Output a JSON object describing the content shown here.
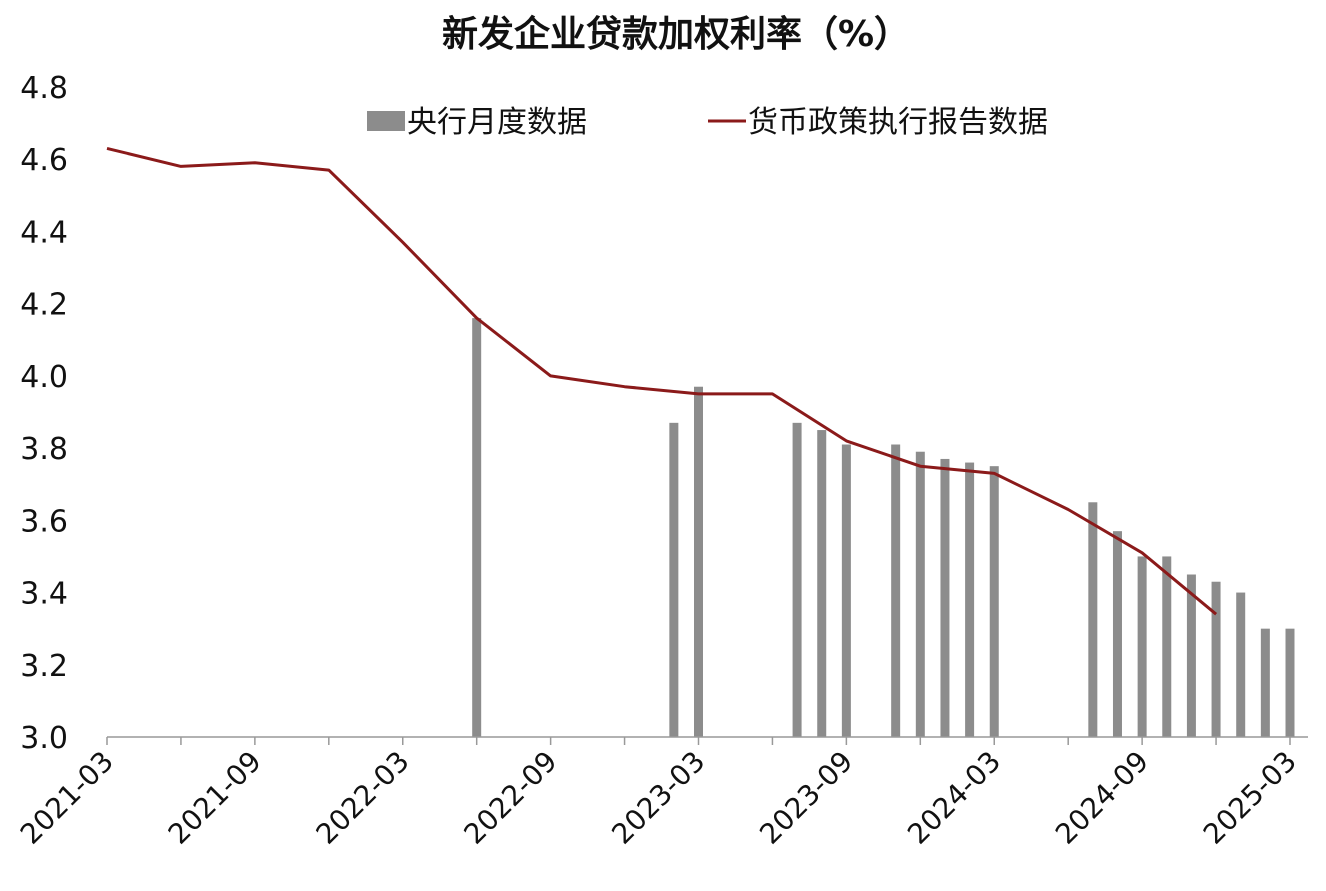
{
  "chart_data": {
    "type": "bar+line",
    "title": "新发企业贷款加权利率（%）",
    "xlabel": "",
    "ylabel": "",
    "ylim": [
      3.0,
      4.8
    ],
    "yticks": [
      "3.0",
      "3.2",
      "3.4",
      "3.6",
      "3.8",
      "4.0",
      "4.2",
      "4.4",
      "4.6",
      "4.8"
    ],
    "xticks": [
      "2021-03",
      "2021-09",
      "2022-03",
      "2022-09",
      "2023-03",
      "2023-09",
      "2024-03",
      "2024-09",
      "2025-03"
    ],
    "legend_position": "top",
    "grid": false,
    "colors": {
      "bar": "#8c8c8c",
      "line": "#8b1a1a",
      "axis": "#999999"
    },
    "series": [
      {
        "name": "央行月度数据",
        "type": "bar",
        "points": [
          {
            "x": "2022-06",
            "y": 4.16
          },
          {
            "x": "2023-02",
            "y": 3.87
          },
          {
            "x": "2023-03",
            "y": 3.97
          },
          {
            "x": "2023-07",
            "y": 3.87
          },
          {
            "x": "2023-08",
            "y": 3.85
          },
          {
            "x": "2023-09",
            "y": 3.81
          },
          {
            "x": "2023-11",
            "y": 3.81
          },
          {
            "x": "2023-12",
            "y": 3.79
          },
          {
            "x": "2024-01",
            "y": 3.77
          },
          {
            "x": "2024-02",
            "y": 3.76
          },
          {
            "x": "2024-03",
            "y": 3.75
          },
          {
            "x": "2024-07",
            "y": 3.65
          },
          {
            "x": "2024-08",
            "y": 3.57
          },
          {
            "x": "2024-09",
            "y": 3.5
          },
          {
            "x": "2024-10",
            "y": 3.5
          },
          {
            "x": "2024-11",
            "y": 3.45
          },
          {
            "x": "2024-12",
            "y": 3.43
          },
          {
            "x": "2025-01",
            "y": 3.4
          },
          {
            "x": "2025-02",
            "y": 3.3
          },
          {
            "x": "2025-03",
            "y": 3.3
          }
        ]
      },
      {
        "name": "货币政策执行报告数据",
        "type": "line",
        "points": [
          {
            "x": "2021-03",
            "y": 4.63
          },
          {
            "x": "2021-06",
            "y": 4.58
          },
          {
            "x": "2021-09",
            "y": 4.59
          },
          {
            "x": "2021-12",
            "y": 4.57
          },
          {
            "x": "2022-03",
            "y": 4.37
          },
          {
            "x": "2022-06",
            "y": 4.16
          },
          {
            "x": "2022-09",
            "y": 4.0
          },
          {
            "x": "2022-12",
            "y": 3.97
          },
          {
            "x": "2023-03",
            "y": 3.95
          },
          {
            "x": "2023-06",
            "y": 3.95
          },
          {
            "x": "2023-09",
            "y": 3.82
          },
          {
            "x": "2023-12",
            "y": 3.75
          },
          {
            "x": "2024-03",
            "y": 3.73
          },
          {
            "x": "2024-06",
            "y": 3.63
          },
          {
            "x": "2024-09",
            "y": 3.51
          },
          {
            "x": "2024-12",
            "y": 3.34
          }
        ]
      }
    ]
  }
}
